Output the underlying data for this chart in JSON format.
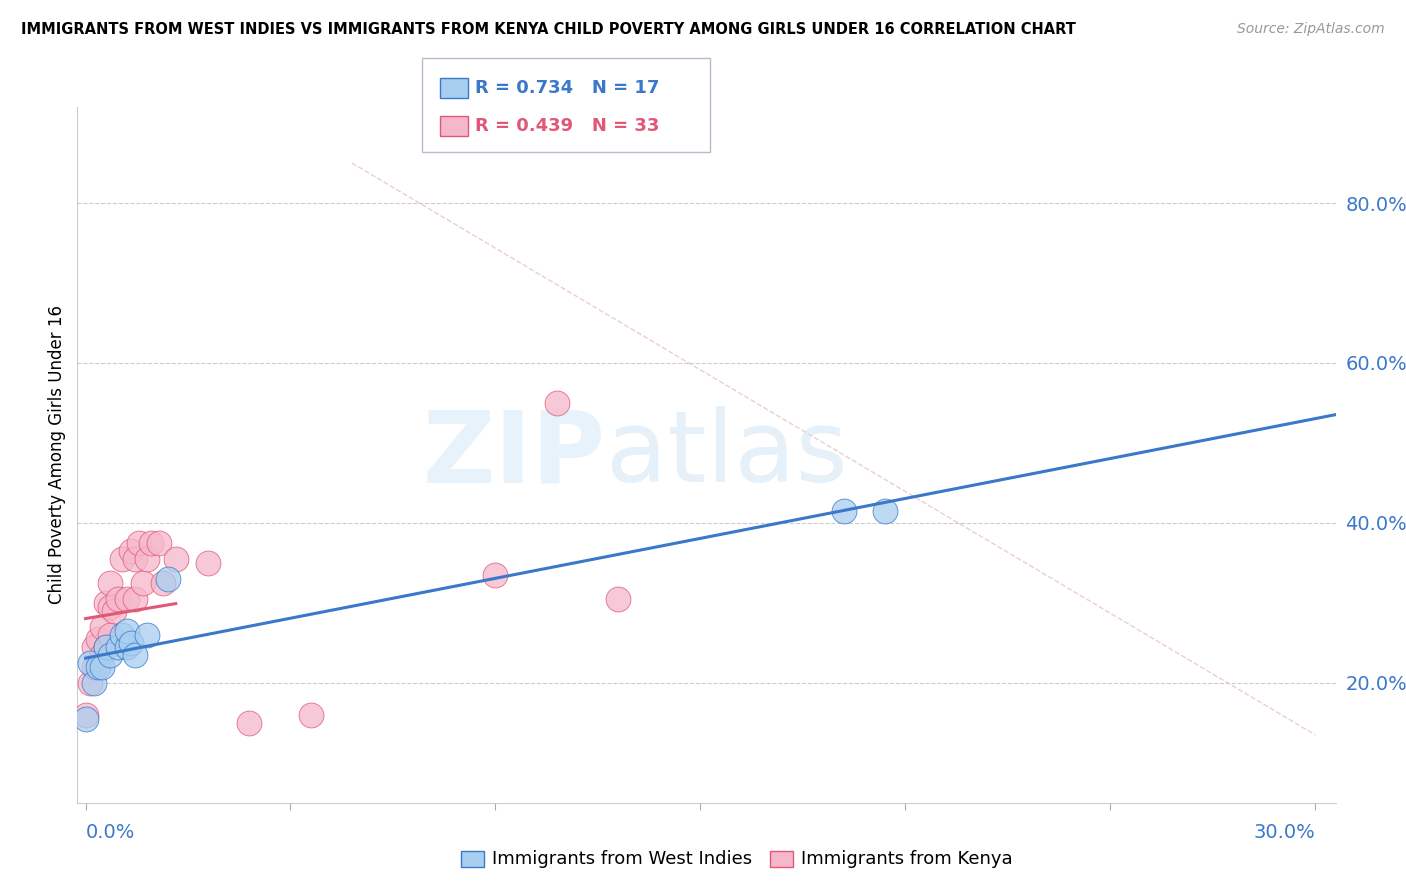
{
  "title": "IMMIGRANTS FROM WEST INDIES VS IMMIGRANTS FROM KENYA CHILD POVERTY AMONG GIRLS UNDER 16 CORRELATION CHART",
  "source": "Source: ZipAtlas.com",
  "ylabel": "Child Poverty Among Girls Under 16",
  "ylabel_right_ticks": [
    "20.0%",
    "40.0%",
    "60.0%",
    "80.0%"
  ],
  "ylabel_right_values": [
    0.2,
    0.4,
    0.6,
    0.8
  ],
  "xlim": [
    -0.002,
    0.305
  ],
  "ylim": [
    0.05,
    0.92
  ],
  "west_indies_R": 0.734,
  "west_indies_N": 17,
  "kenya_R": 0.439,
  "kenya_N": 33,
  "west_indies_color": "#a8cef0",
  "kenya_color": "#f5b8cb",
  "west_indies_line_color": "#3a78c9",
  "kenya_line_color": "#e05878",
  "west_indies_x": [
    0.0,
    0.001,
    0.002,
    0.003,
    0.004,
    0.005,
    0.006,
    0.008,
    0.009,
    0.01,
    0.01,
    0.011,
    0.012,
    0.015,
    0.02,
    0.185,
    0.195
  ],
  "west_indies_y": [
    0.155,
    0.225,
    0.2,
    0.22,
    0.22,
    0.245,
    0.235,
    0.245,
    0.26,
    0.245,
    0.265,
    0.25,
    0.235,
    0.26,
    0.33,
    0.415,
    0.415
  ],
  "kenya_x": [
    0.0,
    0.001,
    0.002,
    0.002,
    0.003,
    0.003,
    0.004,
    0.004,
    0.005,
    0.005,
    0.006,
    0.006,
    0.006,
    0.007,
    0.008,
    0.009,
    0.01,
    0.011,
    0.012,
    0.012,
    0.013,
    0.014,
    0.015,
    0.016,
    0.018,
    0.019,
    0.022,
    0.03,
    0.04,
    0.055,
    0.1,
    0.115,
    0.13
  ],
  "kenya_y": [
    0.16,
    0.2,
    0.22,
    0.245,
    0.225,
    0.255,
    0.235,
    0.27,
    0.245,
    0.3,
    0.26,
    0.295,
    0.325,
    0.29,
    0.305,
    0.355,
    0.305,
    0.365,
    0.305,
    0.355,
    0.375,
    0.325,
    0.355,
    0.375,
    0.375,
    0.325,
    0.355,
    0.35,
    0.15,
    0.16,
    0.335,
    0.55,
    0.305
  ],
  "xtick_positions": [
    0.0,
    0.05,
    0.1,
    0.15,
    0.2,
    0.25,
    0.3
  ],
  "legend_entries": [
    {
      "label": "R = 0.734   N = 17",
      "color": "#3a78c9",
      "face": "#a8cef0"
    },
    {
      "label": "R = 0.439   N = 33",
      "color": "#e05878",
      "face": "#f5b8cb"
    }
  ],
  "bottom_legend": [
    {
      "label": "Immigrants from West Indies",
      "color": "#3a78c9",
      "face": "#a8cef0"
    },
    {
      "label": "Immigrants from Kenya",
      "color": "#e05878",
      "face": "#f5b8cb"
    }
  ]
}
